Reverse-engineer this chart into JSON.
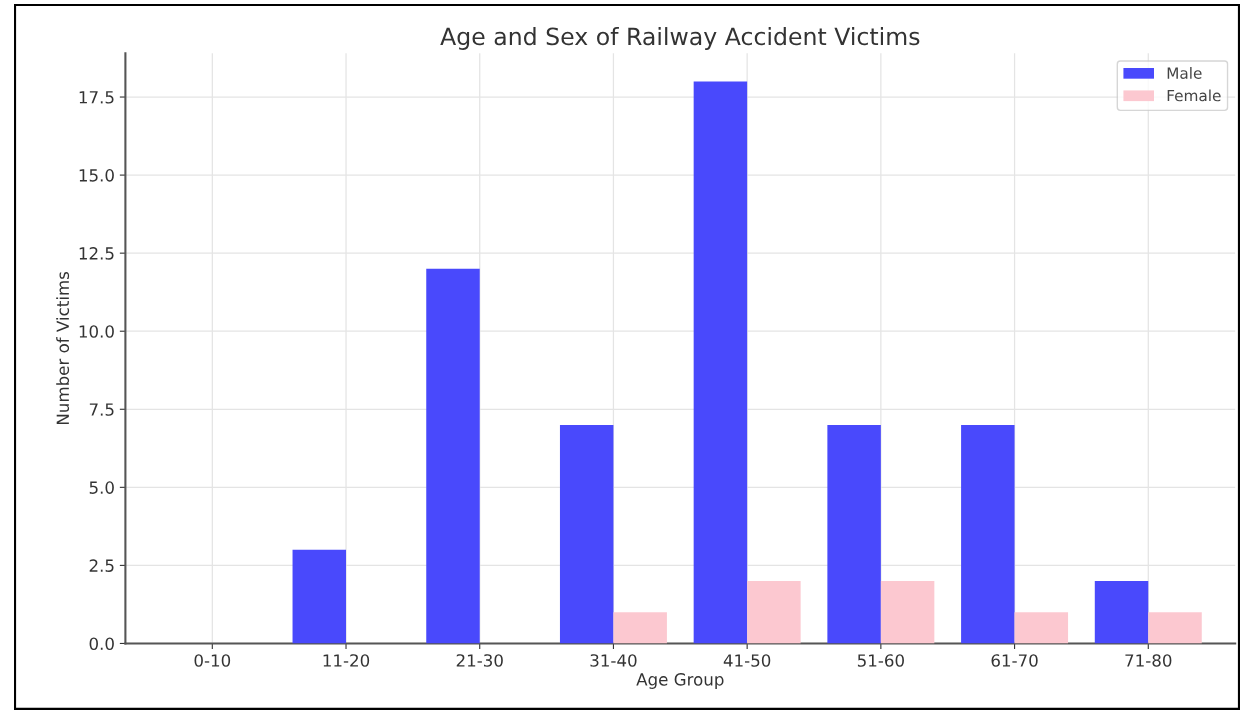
{
  "chart_data": {
    "type": "bar",
    "title": "Age and Sex of Railway Accident Victims",
    "xlabel": "Age Group",
    "ylabel": "Number of Victims",
    "categories": [
      "0-10",
      "11-20",
      "21-30",
      "31-40",
      "41-50",
      "51-60",
      "61-70",
      "71-80"
    ],
    "series": [
      {
        "name": "Male",
        "color": "#4949fc",
        "values": [
          0,
          3,
          12,
          7,
          18,
          7,
          7,
          2
        ]
      },
      {
        "name": "Female",
        "color": "#fcc8d0",
        "values": [
          0,
          0,
          0,
          1,
          2,
          2,
          1,
          1
        ]
      }
    ],
    "ylim": [
      0,
      18.9
    ],
    "yticks": [
      {
        "value": 0,
        "label": "0.0"
      },
      {
        "value": 2.5,
        "label": "2.5"
      },
      {
        "value": 5,
        "label": "5.0"
      },
      {
        "value": 7.5,
        "label": "7.5"
      },
      {
        "value": 10,
        "label": "10.0"
      },
      {
        "value": 12.5,
        "label": "12.5"
      },
      {
        "value": 15,
        "label": "15.0"
      },
      {
        "value": 17.5,
        "label": "17.5"
      }
    ],
    "grid": true,
    "legend": "top right"
  }
}
